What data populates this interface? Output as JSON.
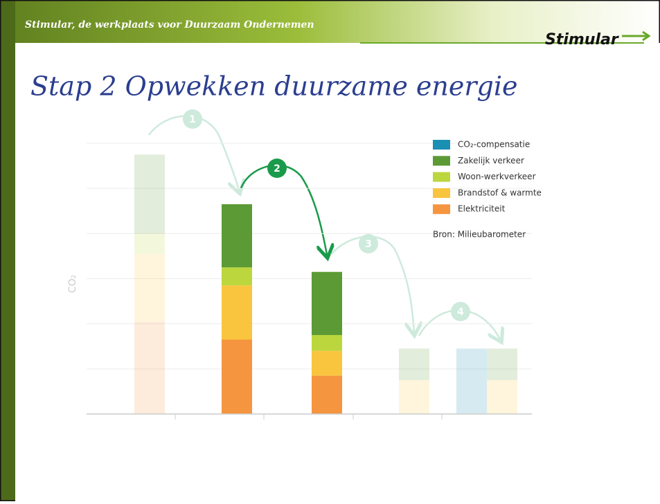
{
  "header": {
    "tagline": "Stimular, de werkplaats voor Duurzaam Ondernemen",
    "logo": "Stimular"
  },
  "slide_title": "Stap 2 Opwekken duurzame energie",
  "chart_data": {
    "type": "stacked_bar",
    "ylabel": "CO₂",
    "source": "Bron: Milieubarometer",
    "annotations": [
      "1",
      "2",
      "3",
      "4"
    ],
    "categories": [
      null,
      null,
      null,
      null,
      null,
      null
    ],
    "series": [
      {
        "name": "CO₂-compensatie",
        "color": "#1a8fb4",
        "values": [
          0,
          0,
          0,
          0,
          1.45,
          0
        ]
      },
      {
        "name": "Zakelijk verkeer",
        "color": "#5c9a36",
        "values": [
          1.75,
          1.4,
          1.4,
          0.7,
          0,
          0.7
        ]
      },
      {
        "name": "Woon-werkverkeer",
        "color": "#bcd63e",
        "values": [
          0.45,
          0.4,
          0.35,
          0,
          0,
          0
        ]
      },
      {
        "name": "Brandstof & warmte",
        "color": "#f9c53e",
        "values": [
          1.5,
          1.2,
          0.55,
          0.75,
          0,
          0.75
        ]
      },
      {
        "name": "Elektriciteit",
        "color": "#f5953f",
        "values": [
          2.05,
          1.65,
          0.85,
          0,
          0,
          0
        ]
      }
    ],
    "ylim": [
      0,
      6
    ],
    "yticks": [
      0,
      1,
      2,
      3,
      4,
      5,
      6
    ],
    "grid": true
  }
}
